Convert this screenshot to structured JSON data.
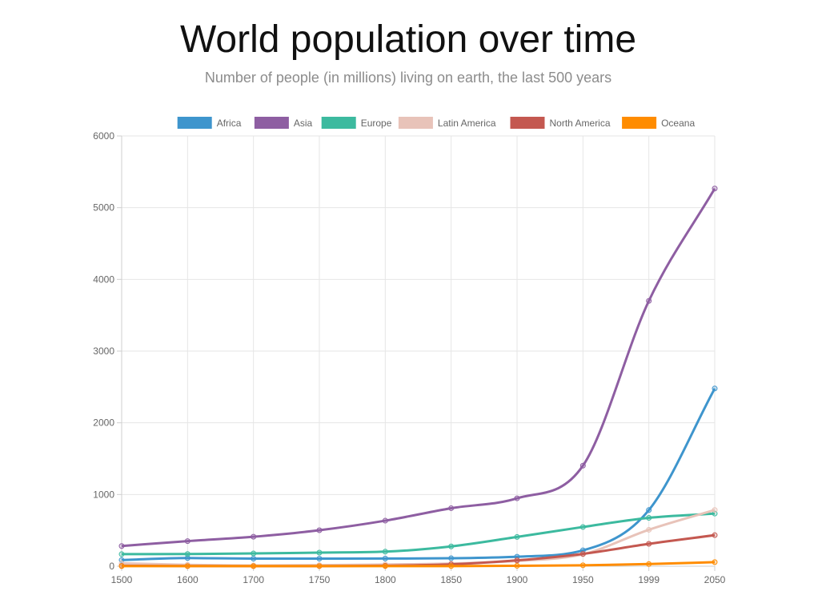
{
  "title": "World population over time",
  "subtitle": "Number of people (in millions) living on earth, the last 500 years",
  "chart_data": {
    "type": "line",
    "x": [
      "1500",
      "1600",
      "1700",
      "1750",
      "1800",
      "1850",
      "1900",
      "1950",
      "1999",
      "2050"
    ],
    "ylim": [
      0,
      6000
    ],
    "yticks": [
      0,
      1000,
      2000,
      3000,
      4000,
      5000,
      6000
    ],
    "grid": true,
    "legend_position": "top",
    "series": [
      {
        "name": "Africa",
        "color": "#3e95cd",
        "values": [
          86,
          114,
          106,
          106,
          107,
          111,
          133,
          221,
          783,
          2478
        ]
      },
      {
        "name": "Asia",
        "color": "#8e5ea2",
        "values": [
          282,
          350,
          411,
          502,
          635,
          809,
          947,
          1402,
          3700,
          5267
        ]
      },
      {
        "name": "Europe",
        "color": "#3cba9f",
        "values": [
          168,
          170,
          178,
          190,
          203,
          276,
          408,
          547,
          675,
          734
        ]
      },
      {
        "name": "Latin America",
        "color": "#e8c3b9",
        "values": [
          40,
          20,
          10,
          16,
          24,
          38,
          74,
          167,
          508,
          784
        ]
      },
      {
        "name": "North America",
        "color": "#c45850",
        "values": [
          6,
          3,
          2,
          2,
          7,
          26,
          82,
          172,
          312,
          433
        ]
      },
      {
        "name": "Oceana",
        "color": "#ff8c00",
        "values": [
          1,
          1,
          1,
          2,
          2,
          2,
          6,
          13,
          30,
          57
        ]
      }
    ]
  }
}
